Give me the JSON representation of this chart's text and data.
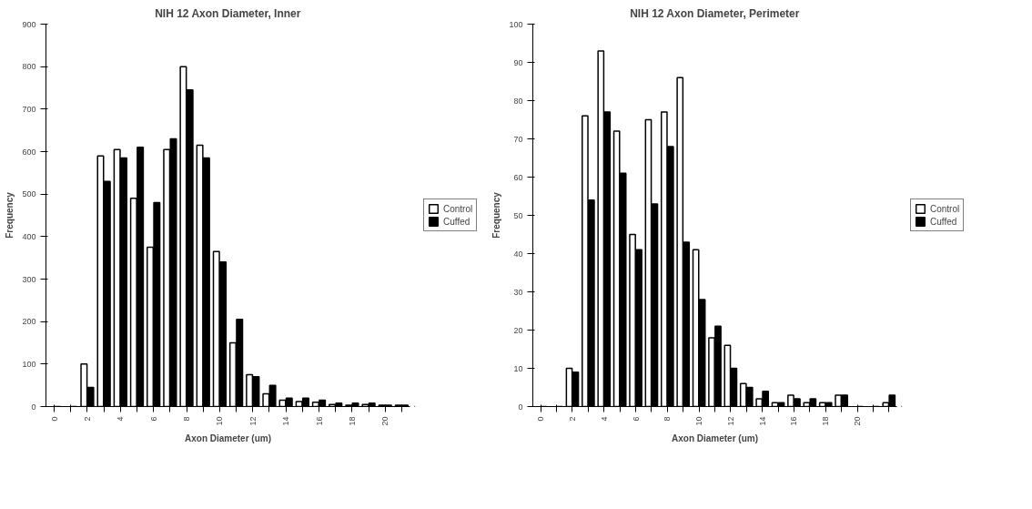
{
  "chart_data": [
    {
      "type": "bar",
      "title": "NIH 12 Axon Diameter, Inner",
      "xlabel": "Axon Diameter (um)",
      "ylabel": "Frequency",
      "categories": [
        "0",
        null,
        "2",
        null,
        "4",
        null,
        "6",
        null,
        "8",
        null,
        "10",
        null,
        "12",
        null,
        "14",
        null,
        "16",
        null,
        "18",
        null,
        "20",
        null
      ],
      "series": [
        {
          "name": "Control",
          "color": "#ffffff",
          "values": [
            0,
            0,
            100,
            590,
            605,
            490,
            375,
            605,
            800,
            615,
            365,
            150,
            75,
            30,
            15,
            12,
            10,
            5,
            3,
            5,
            3,
            3
          ]
        },
        {
          "name": "Cuffed",
          "color": "#000000",
          "values": [
            0,
            0,
            45,
            530,
            585,
            610,
            480,
            630,
            745,
            585,
            340,
            205,
            70,
            50,
            20,
            20,
            15,
            8,
            8,
            8,
            3,
            3
          ]
        }
      ],
      "ylim": [
        0,
        900
      ],
      "yticks": [
        0,
        100,
        200,
        300,
        400,
        500,
        600,
        700,
        800,
        900
      ],
      "legend": "right"
    },
    {
      "type": "bar",
      "title": "NIH 12 Axon Diameter, Perimeter",
      "xlabel": "Axon Diameter (um)",
      "ylabel": "Frequency",
      "categories": [
        "0",
        null,
        "2",
        null,
        "4",
        null,
        "6",
        null,
        "8",
        null,
        "10",
        null,
        "12",
        null,
        "14",
        null,
        "16",
        null,
        "18",
        null,
        "20",
        null,
        null
      ],
      "series": [
        {
          "name": "Control",
          "color": "#ffffff",
          "values": [
            0,
            0,
            10,
            76,
            93,
            72,
            45,
            75,
            77,
            86,
            41,
            18,
            16,
            6,
            2,
            1,
            3,
            1,
            1,
            3,
            0,
            0,
            1
          ]
        },
        {
          "name": "Cuffed",
          "color": "#000000",
          "values": [
            0,
            0,
            9,
            54,
            77,
            61,
            41,
            53,
            68,
            43,
            28,
            21,
            10,
            5,
            4,
            1,
            2,
            2,
            1,
            3,
            0,
            0,
            3
          ]
        }
      ],
      "ylim": [
        0,
        100
      ],
      "yticks": [
        0,
        10,
        20,
        30,
        40,
        50,
        60,
        70,
        80,
        90,
        100
      ],
      "legend": "right"
    }
  ]
}
